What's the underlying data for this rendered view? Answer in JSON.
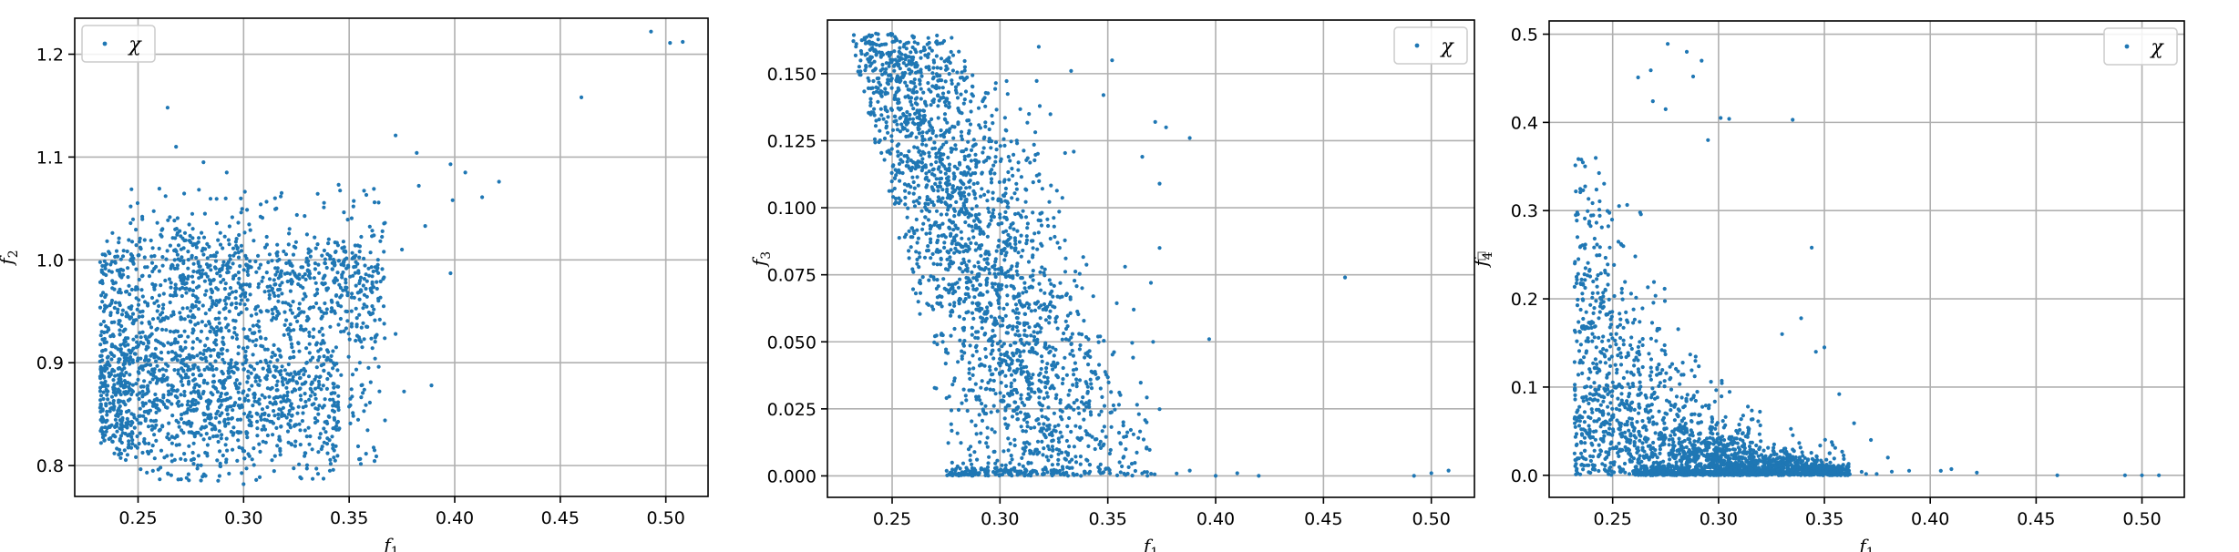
{
  "chart_data": [
    {
      "type": "scatter",
      "xlabel_base": "f",
      "xlabel_sub": "1",
      "ylabel_base": "f",
      "ylabel_sub": "2",
      "xlim": [
        0.22,
        0.52
      ],
      "ylim": [
        0.77,
        1.235
      ],
      "xticks": [
        0.25,
        0.3,
        0.35,
        0.4,
        0.45,
        0.5
      ],
      "yticks": [
        0.8,
        0.9,
        1.0,
        1.1,
        1.2
      ],
      "grid": true,
      "legend": "top-left",
      "series": [
        {
          "name": "χ",
          "color": "#1f77b4",
          "count": 2400,
          "points": [
            [
              0.493,
              1.222
            ],
            [
              0.502,
              1.211
            ],
            [
              0.508,
              1.212
            ],
            [
              0.46,
              1.158
            ],
            [
              0.264,
              1.148
            ],
            [
              0.268,
              1.11
            ],
            [
              0.372,
              1.121
            ],
            [
              0.382,
              1.104
            ],
            [
              0.398,
              1.093
            ],
            [
              0.421,
              1.076
            ],
            [
              0.413,
              1.061
            ],
            [
              0.399,
              1.058
            ],
            [
              0.405,
              1.085
            ],
            [
              0.383,
              1.072
            ],
            [
              0.362,
              1.056
            ],
            [
              0.367,
              1.036
            ],
            [
              0.386,
              1.033
            ],
            [
              0.375,
              1.01
            ],
            [
              0.398,
              0.987
            ],
            [
              0.372,
              0.928
            ],
            [
              0.364,
              0.896
            ],
            [
              0.376,
              0.872
            ],
            [
              0.389,
              0.878
            ],
            [
              0.367,
              0.844
            ],
            [
              0.357,
              0.853
            ],
            [
              0.345,
              1.073
            ],
            [
              0.352,
              1.052
            ],
            [
              0.338,
              1.051
            ],
            [
              0.318,
              1.065
            ],
            [
              0.308,
              1.042
            ],
            [
              0.236,
              1.008
            ],
            [
              0.241,
              1.021
            ],
            [
              0.252,
              1.042
            ],
            [
              0.281,
              1.095
            ],
            [
              0.292,
              1.085
            ],
            [
              0.345,
              0.835
            ],
            [
              0.336,
              0.827
            ],
            [
              0.3,
              0.782
            ],
            [
              0.282,
              0.79
            ],
            [
              0.306,
              0.786
            ],
            [
              0.273,
              0.788
            ]
          ]
        }
      ]
    },
    {
      "type": "scatter",
      "xlabel_base": "f",
      "xlabel_sub": "1",
      "ylabel_base": "f",
      "ylabel_sub": "3",
      "xlim": [
        0.22,
        0.52
      ],
      "ylim": [
        -0.008,
        0.17
      ],
      "xticks": [
        0.25,
        0.3,
        0.35,
        0.4,
        0.45,
        0.5
      ],
      "yticks": [
        0.0,
        0.025,
        0.05,
        0.075,
        0.1,
        0.125,
        0.15
      ],
      "ytick_labels": [
        "0.000",
        "0.025",
        "0.050",
        "0.075",
        "0.100",
        "0.125",
        "0.150"
      ],
      "grid": true,
      "legend": "top-right",
      "series": [
        {
          "name": "χ",
          "color": "#1f77b4",
          "count": 2400,
          "points": [
            [
              0.46,
              0.074
            ],
            [
              0.397,
              0.051
            ],
            [
              0.374,
              0.085
            ],
            [
              0.388,
              0.126
            ],
            [
              0.372,
              0.132
            ],
            [
              0.377,
              0.13
            ],
            [
              0.366,
              0.119
            ],
            [
              0.374,
              0.109
            ],
            [
              0.352,
              0.155
            ],
            [
              0.333,
              0.151
            ],
            [
              0.348,
              0.142
            ],
            [
              0.318,
              0.16
            ],
            [
              0.492,
              0.0
            ],
            [
              0.5,
              0.001
            ],
            [
              0.508,
              0.002
            ],
            [
              0.42,
              0.0
            ],
            [
              0.41,
              0.001
            ],
            [
              0.4,
              0.0
            ],
            [
              0.388,
              0.002
            ],
            [
              0.356,
              0.012
            ],
            [
              0.368,
              0.02
            ],
            [
              0.371,
              0.05
            ],
            [
              0.362,
              0.062
            ],
            [
              0.37,
              0.072
            ],
            [
              0.358,
              0.078
            ]
          ]
        }
      ]
    },
    {
      "type": "scatter",
      "xlabel_base": "f",
      "xlabel_sub": "1",
      "ylabel_base": "f",
      "ylabel_sub": "4",
      "xlim": [
        0.22,
        0.52
      ],
      "ylim": [
        -0.025,
        0.515
      ],
      "xticks": [
        0.25,
        0.3,
        0.35,
        0.4,
        0.45,
        0.5
      ],
      "yticks": [
        0.0,
        0.1,
        0.2,
        0.3,
        0.4,
        0.5
      ],
      "grid": true,
      "legend": "top-right",
      "series": [
        {
          "name": "χ",
          "color": "#1f77b4",
          "count": 2400,
          "points": [
            [
              0.276,
              0.489
            ],
            [
              0.285,
              0.48
            ],
            [
              0.292,
              0.47
            ],
            [
              0.288,
              0.452
            ],
            [
              0.262,
              0.451
            ],
            [
              0.268,
              0.459
            ],
            [
              0.335,
              0.403
            ],
            [
              0.301,
              0.405
            ],
            [
              0.305,
              0.404
            ],
            [
              0.295,
              0.38
            ],
            [
              0.269,
              0.424
            ],
            [
              0.275,
              0.415
            ],
            [
              0.344,
              0.258
            ],
            [
              0.35,
              0.145
            ],
            [
              0.346,
              0.14
            ],
            [
              0.33,
              0.16
            ],
            [
              0.339,
              0.178
            ],
            [
              0.357,
              0.092
            ],
            [
              0.364,
              0.059
            ],
            [
              0.372,
              0.04
            ],
            [
              0.38,
              0.02
            ],
            [
              0.405,
              0.005
            ],
            [
              0.41,
              0.007
            ],
            [
              0.422,
              0.003
            ],
            [
              0.46,
              0.0
            ],
            [
              0.492,
              0.0
            ],
            [
              0.5,
              0.0
            ],
            [
              0.508,
              0.0
            ]
          ]
        }
      ]
    }
  ]
}
